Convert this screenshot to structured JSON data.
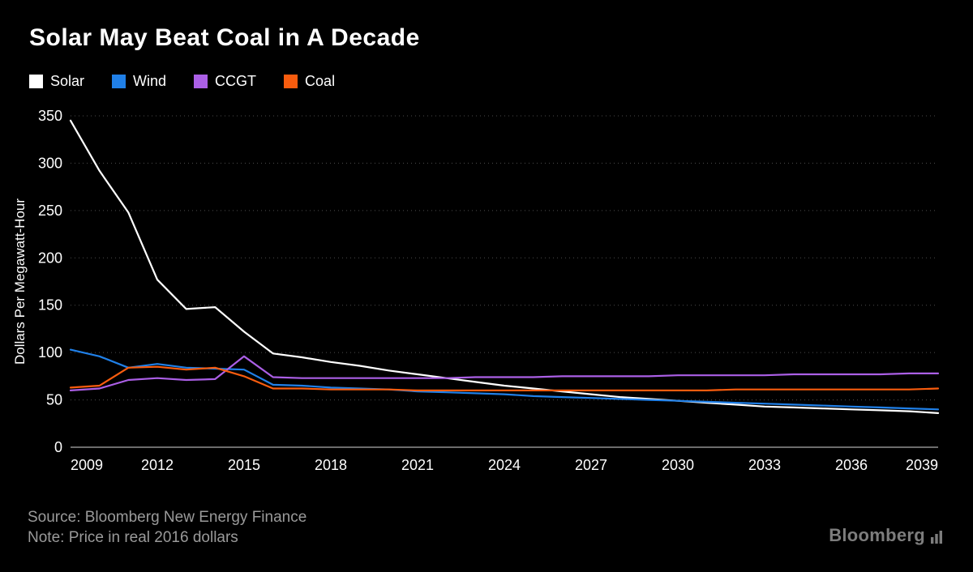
{
  "title": "Solar May Beat Coal in A Decade",
  "legend": [
    {
      "label": "Solar",
      "color": "#ffffff"
    },
    {
      "label": "Wind",
      "color": "#2080e8"
    },
    {
      "label": "CCGT",
      "color": "#ab5fe6"
    },
    {
      "label": "Coal",
      "color": "#f85c0e"
    }
  ],
  "footer": {
    "source": "Source: Bloomberg New Energy Finance",
    "note": "Note: Price in real 2016 dollars",
    "brand": "Bloomberg"
  },
  "chart_data": {
    "type": "line",
    "title": "Solar May Beat Coal in A Decade",
    "xlabel": "",
    "ylabel": "Dollars Per Megawatt-Hour",
    "ylim": [
      0,
      350
    ],
    "yticks": [
      0,
      50,
      100,
      150,
      200,
      250,
      300,
      350
    ],
    "xticks": [
      2009,
      2012,
      2015,
      2018,
      2021,
      2024,
      2027,
      2030,
      2033,
      2036,
      2039
    ],
    "grid": "dotted-horizontal",
    "legend_position": "top-left",
    "x": [
      2009,
      2010,
      2011,
      2012,
      2013,
      2014,
      2015,
      2016,
      2017,
      2018,
      2019,
      2020,
      2021,
      2022,
      2023,
      2024,
      2025,
      2026,
      2027,
      2028,
      2029,
      2030,
      2031,
      2032,
      2033,
      2034,
      2035,
      2036,
      2037,
      2038,
      2039
    ],
    "series": [
      {
        "name": "Solar",
        "color": "#ffffff",
        "values": [
          345,
          292,
          248,
          177,
          146,
          148,
          122,
          99,
          95,
          90,
          86,
          81,
          77,
          73,
          69,
          65,
          62,
          59,
          56,
          53,
          51,
          49,
          47,
          45,
          43,
          42,
          41,
          40,
          39,
          38,
          36
        ]
      },
      {
        "name": "Wind",
        "color": "#2080e8",
        "values": [
          103,
          96,
          84,
          88,
          84,
          83,
          82,
          66,
          65,
          63,
          62,
          61,
          59,
          58,
          57,
          56,
          54,
          53,
          52,
          51,
          50,
          49,
          48,
          47,
          46,
          45,
          44,
          43,
          42,
          41,
          40
        ]
      },
      {
        "name": "CCGT",
        "color": "#ab5fe6",
        "values": [
          60,
          62,
          71,
          73,
          71,
          72,
          96,
          74,
          73,
          73,
          73,
          73,
          73,
          73,
          74,
          74,
          74,
          75,
          75,
          75,
          75,
          76,
          76,
          76,
          76,
          77,
          77,
          77,
          77,
          78,
          78
        ]
      },
      {
        "name": "Coal",
        "color": "#f85c0e",
        "values": [
          63,
          65,
          84,
          85,
          82,
          84,
          75,
          62,
          62,
          61,
          61,
          61,
          60,
          60,
          60,
          60,
          60,
          60,
          60,
          60,
          60,
          60,
          60,
          61,
          61,
          61,
          61,
          61,
          61,
          61,
          62
        ]
      }
    ]
  }
}
